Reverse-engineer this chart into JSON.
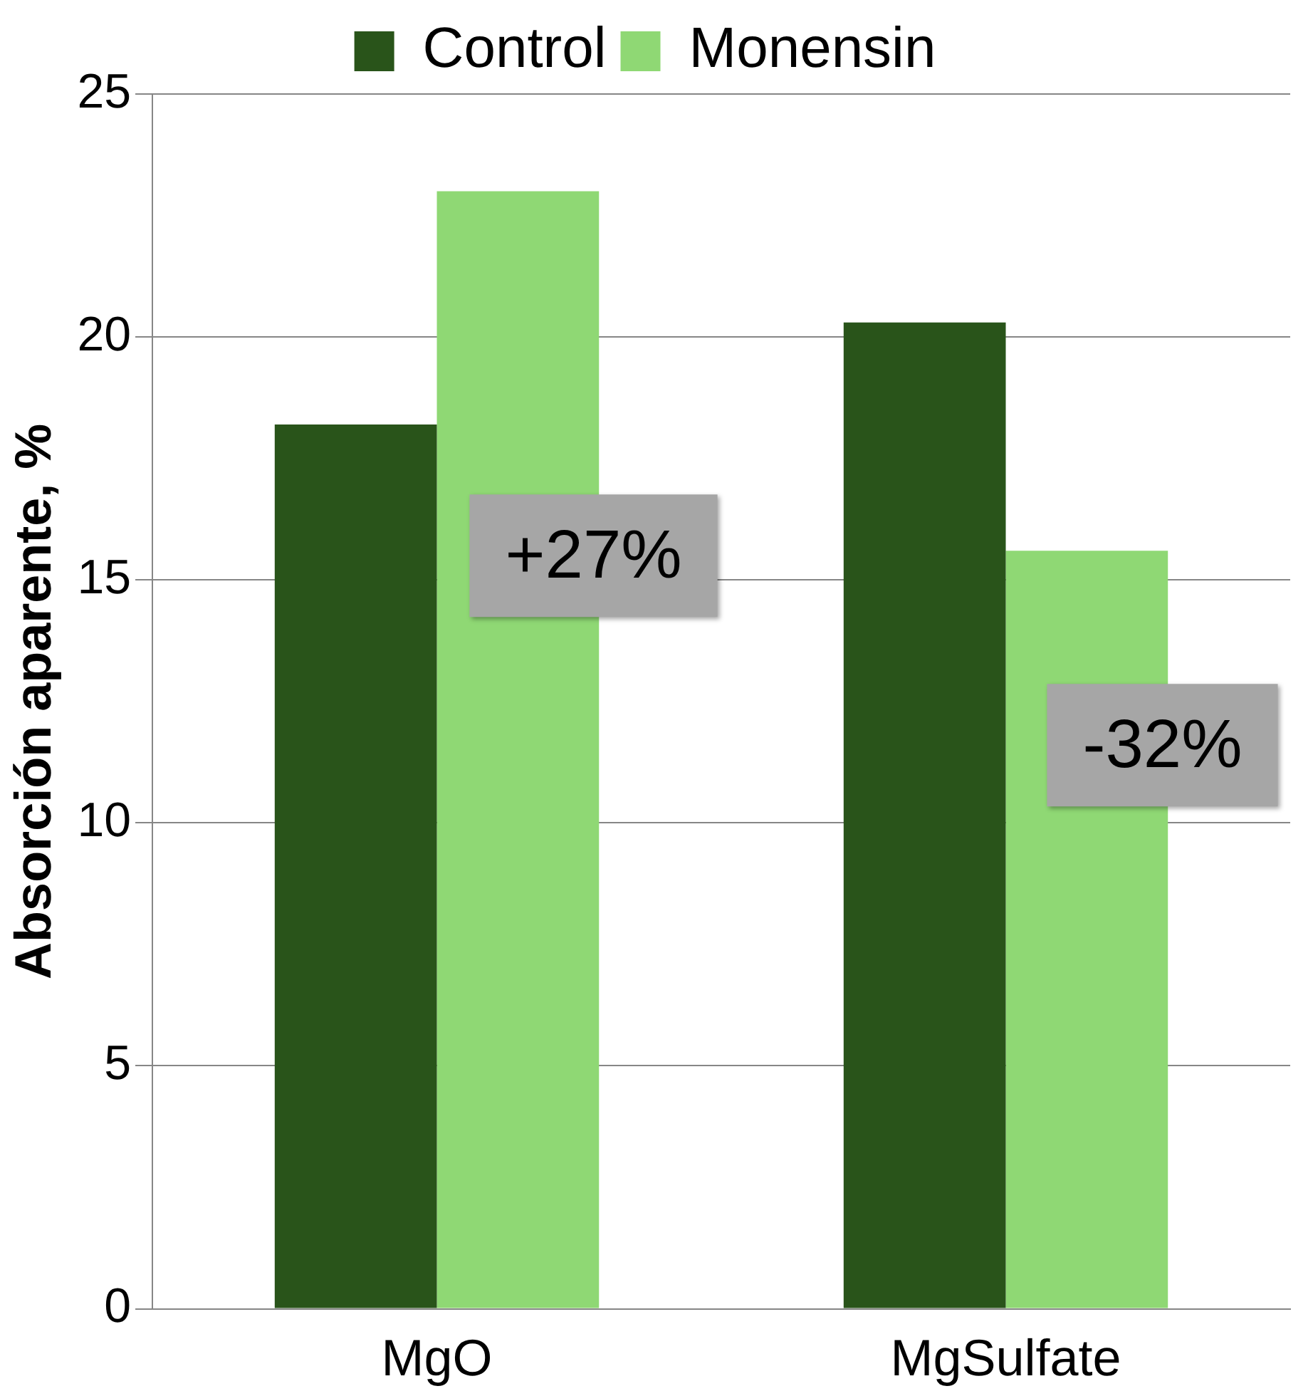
{
  "chart_data": {
    "type": "bar",
    "ylabel": "Absorción aparente, %",
    "categories": [
      "MgO",
      "MgSulfate"
    ],
    "series": [
      {
        "name": "Control",
        "color": "#29541a",
        "values": [
          18.2,
          20.3
        ]
      },
      {
        "name": "Monensin",
        "color": "#8fd874",
        "values": [
          23.0,
          15.6
        ]
      }
    ],
    "ylim": [
      0,
      25
    ],
    "yticks": [
      0,
      5,
      10,
      15,
      20,
      25
    ],
    "grid": "y",
    "legend": "top",
    "annotations": [
      {
        "text": "+27%",
        "x": "MgO",
        "y": 15.5
      },
      {
        "text": "-32%",
        "x": "MgSulfate",
        "y": 11.6
      }
    ]
  }
}
